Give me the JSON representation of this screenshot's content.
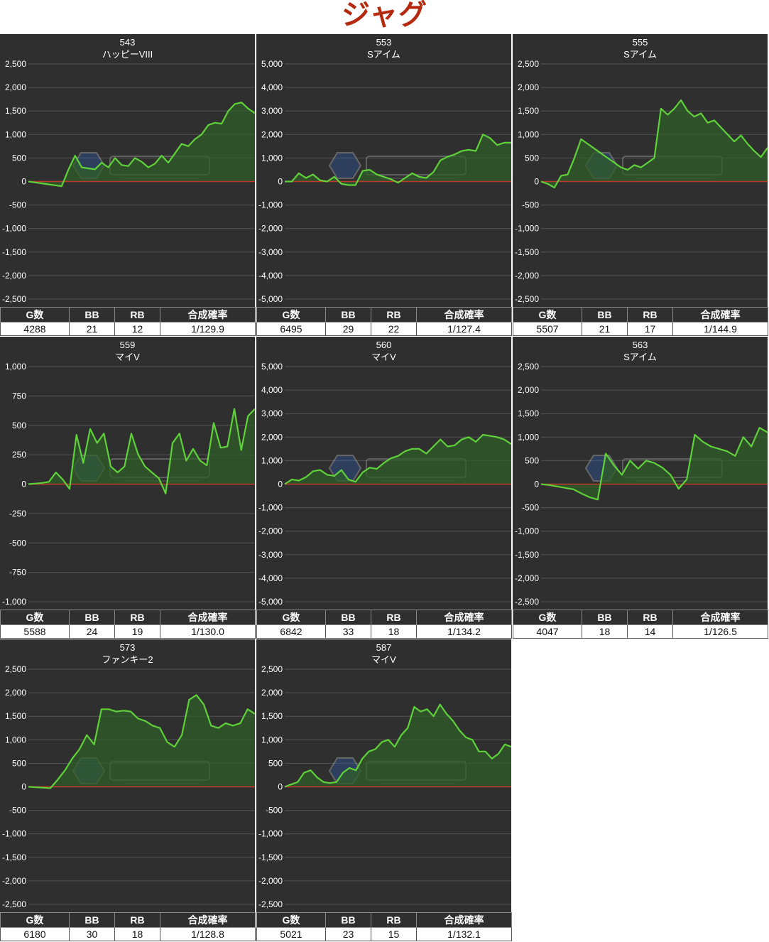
{
  "page_title": "ジャグ",
  "table_headers": [
    "G数",
    "BB",
    "RB",
    "合成確率"
  ],
  "colors": {
    "panel_bg": "#2f2f2f",
    "line": "#5fd13a",
    "fill": "#2f5d2a",
    "zero_line": "#c0392b",
    "title": "#b5290f"
  },
  "chart_data": [
    {
      "type": "area",
      "machine_no": "543",
      "machine_name": "ハッピーVIII",
      "ylim": [
        -2500,
        2500
      ],
      "yticks": [
        "2,500",
        "2,000",
        "1,500",
        "1,000",
        "500",
        "0",
        "-500",
        "-1,000",
        "-1,500",
        "-2,000",
        "-2,500"
      ],
      "values": [
        0,
        -20,
        -40,
        -60,
        -80,
        -100,
        250,
        550,
        300,
        280,
        260,
        400,
        300,
        500,
        350,
        330,
        500,
        420,
        300,
        380,
        550,
        400,
        600,
        800,
        750,
        900,
        1000,
        1200,
        1250,
        1230,
        1500,
        1650,
        1680,
        1550,
        1450
      ],
      "stats": {
        "games": "4288",
        "bb": "21",
        "rb": "12",
        "prob": "1/129.9"
      }
    },
    {
      "type": "area",
      "machine_no": "553",
      "machine_name": "Sアイム",
      "ylim": [
        -5000,
        5000
      ],
      "yticks": [
        "5,000",
        "4,000",
        "3,000",
        "2,000",
        "1,000",
        "0",
        "-1,000",
        "-2,000",
        "-3,000",
        "-4,000",
        "-5,000"
      ],
      "values": [
        0,
        0,
        350,
        150,
        300,
        50,
        0,
        200,
        -100,
        -150,
        -150,
        450,
        500,
        300,
        200,
        100,
        -50,
        150,
        350,
        200,
        150,
        400,
        900,
        1050,
        1150,
        1300,
        1350,
        1300,
        2000,
        1850,
        1550,
        1650,
        1650
      ],
      "stats": {
        "games": "6495",
        "bb": "29",
        "rb": "22",
        "prob": "1/127.4"
      }
    },
    {
      "type": "area",
      "machine_no": "555",
      "machine_name": "Sアイム",
      "ylim": [
        -2500,
        2500
      ],
      "yticks": [
        "2,500",
        "2,000",
        "1,500",
        "1,000",
        "500",
        "0",
        "-500",
        "-1,000",
        "-1,500",
        "-2,000",
        "-2,500"
      ],
      "values": [
        0,
        -50,
        -130,
        120,
        150,
        500,
        900,
        800,
        700,
        600,
        500,
        400,
        300,
        250,
        350,
        300,
        400,
        500,
        1550,
        1420,
        1550,
        1730,
        1500,
        1380,
        1450,
        1250,
        1300,
        1150,
        1000,
        850,
        980,
        800,
        650,
        520,
        720
      ],
      "stats": {
        "games": "5507",
        "bb": "21",
        "rb": "17",
        "prob": "1/144.9"
      }
    },
    {
      "type": "area",
      "machine_no": "559",
      "machine_name": "マイV",
      "ylim": [
        -1000,
        1000
      ],
      "yticks": [
        "1,000",
        "750",
        "500",
        "250",
        "0",
        "-250",
        "-500",
        "-750",
        "-1,000"
      ],
      "values": [
        0,
        5,
        10,
        20,
        100,
        40,
        -40,
        420,
        180,
        470,
        350,
        430,
        150,
        100,
        150,
        430,
        250,
        150,
        100,
        50,
        -80,
        350,
        430,
        200,
        300,
        200,
        160,
        520,
        310,
        320,
        640,
        290,
        580,
        640
      ],
      "stats": {
        "games": "5588",
        "bb": "24",
        "rb": "19",
        "prob": "1/130.0"
      }
    },
    {
      "type": "area",
      "machine_no": "560",
      "machine_name": "マイV",
      "ylim": [
        -5000,
        5000
      ],
      "yticks": [
        "5,000",
        "4,000",
        "3,000",
        "2,000",
        "1,000",
        "0",
        "-1,000",
        "-2,000",
        "-3,000",
        "-4,000",
        "-5,000"
      ],
      "values": [
        0,
        200,
        150,
        300,
        550,
        600,
        400,
        350,
        600,
        200,
        100,
        500,
        700,
        650,
        900,
        1100,
        1200,
        1400,
        1500,
        1500,
        1300,
        1600,
        1900,
        1600,
        1650,
        1900,
        2000,
        1800,
        2100,
        2050,
        2000,
        1900,
        1700
      ],
      "stats": {
        "games": "6842",
        "bb": "33",
        "rb": "18",
        "prob": "1/134.2"
      }
    },
    {
      "type": "area",
      "machine_no": "563",
      "machine_name": "Sアイム",
      "ylim": [
        -2500,
        2500
      ],
      "yticks": [
        "2,500",
        "2,000",
        "1,500",
        "1,000",
        "500",
        "0",
        "-500",
        "-1,000",
        "-1,500",
        "-2,000",
        "-2,500"
      ],
      "values": [
        0,
        -20,
        -50,
        -80,
        -110,
        -200,
        -280,
        -330,
        650,
        400,
        200,
        500,
        330,
        500,
        450,
        350,
        200,
        -100,
        100,
        1050,
        900,
        800,
        750,
        700,
        600,
        1000,
        800,
        1200,
        1100
      ],
      "stats": {
        "games": "4047",
        "bb": "18",
        "rb": "14",
        "prob": "1/126.5"
      }
    },
    {
      "type": "area",
      "machine_no": "573",
      "machine_name": "ファンキー2",
      "ylim": [
        -2500,
        2500
      ],
      "yticks": [
        "2,500",
        "2,000",
        "1,500",
        "1,000",
        "500",
        "0",
        "-500",
        "-1,000",
        "-1,500",
        "-2,000",
        "-2,500"
      ],
      "values": [
        0,
        -10,
        -20,
        -30,
        150,
        350,
        600,
        800,
        1100,
        900,
        1650,
        1650,
        1600,
        1620,
        1600,
        1450,
        1400,
        1300,
        1250,
        950,
        850,
        1100,
        1850,
        1950,
        1750,
        1300,
        1250,
        1350,
        1300,
        1350,
        1650,
        1550
      ],
      "stats": {
        "games": "6180",
        "bb": "30",
        "rb": "18",
        "prob": "1/128.8"
      }
    },
    {
      "type": "area",
      "machine_no": "587",
      "machine_name": "マイV",
      "ylim": [
        -2500,
        2500
      ],
      "yticks": [
        "2,500",
        "2,000",
        "1,500",
        "1,000",
        "500",
        "0",
        "-500",
        "-1,000",
        "-1,500",
        "-2,000",
        "-2,500"
      ],
      "values": [
        0,
        50,
        100,
        300,
        350,
        200,
        100,
        80,
        100,
        300,
        400,
        350,
        600,
        750,
        800,
        950,
        1000,
        850,
        1100,
        1250,
        1700,
        1600,
        1650,
        1500,
        1750,
        1550,
        1400,
        1200,
        1050,
        1000,
        750,
        750,
        600,
        700,
        900,
        850
      ],
      "stats": {
        "games": "5021",
        "bb": "23",
        "rb": "15",
        "prob": "1/132.1"
      }
    }
  ]
}
